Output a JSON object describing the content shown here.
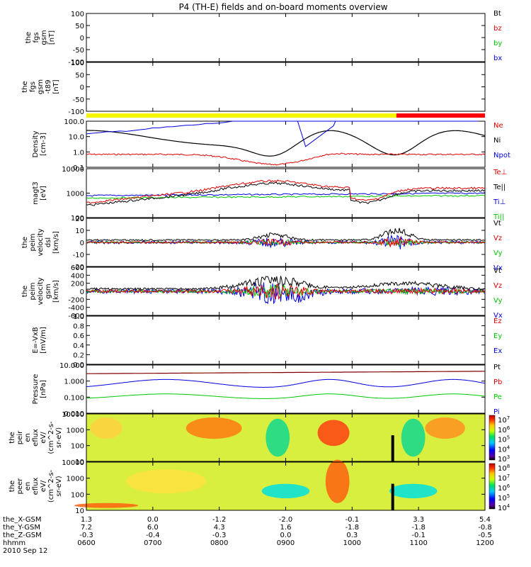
{
  "title": "P4 (TH-E) fields and on-board moments overview",
  "colors": {
    "black": "#000000",
    "red": "#e00000",
    "green": "#00c800",
    "blue": "#0000e0",
    "yellow": "#f5f500",
    "brightred": "#ff0000",
    "darkred": "#800000"
  },
  "chart_data": {
    "type": "line",
    "x_axis": {
      "ticks": [
        "0600",
        "0700",
        "0800",
        "0900",
        "1000",
        "1100",
        "1200"
      ],
      "date": "2010 Sep 12"
    },
    "panels": [
      {
        "id": "fgs_gse",
        "ylabel": [
          "the",
          "fgs",
          "gsm",
          "[nT]"
        ],
        "yticks": [
          "100",
          "50",
          "0",
          "-50",
          "-100"
        ],
        "legend": [
          {
            "label": "Bt",
            "color": "#000000"
          },
          {
            "label": "bz",
            "color": "#e00000"
          },
          {
            "label": "by",
            "color": "#00c800"
          },
          {
            "label": "bx",
            "color": "#0000e0"
          }
        ]
      },
      {
        "id": "fgs_t89",
        "ylabel": [
          "the",
          "fgs",
          "gsm",
          "-t89",
          "[nT]"
        ],
        "yticks": [
          "100",
          "50",
          "0",
          "-50",
          "-100"
        ],
        "legend": []
      },
      {
        "id": "density",
        "ylabel": [
          "Density",
          "[cm-3]"
        ],
        "yticks": [
          "100.0",
          "10.0",
          "1.0",
          "0.1"
        ],
        "legend": [
          {
            "label": "Ne",
            "color": "#e00000"
          },
          {
            "label": "Ni",
            "color": "#000000"
          },
          {
            "label": "Npot",
            "color": "#0000e0"
          }
        ]
      },
      {
        "id": "temperature",
        "ylabel": [
          "magt3",
          "[eV]"
        ],
        "yticks": [
          "10000",
          "1000",
          "100"
        ],
        "legend": [
          {
            "label": "Te⊥",
            "color": "#e00000"
          },
          {
            "label": "Te||",
            "color": "#000000"
          },
          {
            "label": "Ti⊥",
            "color": "#0000e0"
          },
          {
            "label": "Ti||",
            "color": "#00c800"
          }
        ]
      },
      {
        "id": "velocity_e",
        "ylabel": [
          "the",
          "peim",
          "velocity",
          "dsl",
          "[km/s]"
        ],
        "yticks": [
          "20",
          "10",
          "0",
          "-10",
          "-20"
        ],
        "legend": [
          {
            "label": "Vt",
            "color": "#000000"
          },
          {
            "label": "Vz",
            "color": "#e00000"
          },
          {
            "label": "Vy",
            "color": "#00c800"
          },
          {
            "label": "Vx",
            "color": "#0000e0"
          }
        ]
      },
      {
        "id": "velocity_i",
        "ylabel": [
          "the",
          "peim",
          "velocity",
          "gsm",
          "[km/s]"
        ],
        "yticks": [
          "600",
          "400",
          "200",
          "0",
          "-200",
          "-400",
          "-600"
        ],
        "legend": [
          {
            "label": "Vt",
            "color": "#000000"
          },
          {
            "label": "Vz",
            "color": "#e00000"
          },
          {
            "label": "Vy",
            "color": "#00c800"
          },
          {
            "label": "Vx",
            "color": "#0000e0"
          }
        ]
      },
      {
        "id": "efield",
        "ylabel": [
          "E=-VxB",
          "[mV/m]"
        ],
        "yticks": [
          "1.0",
          "0.8",
          "0.6",
          "0.4",
          "0.2",
          "0.0"
        ],
        "legend": [
          {
            "label": "Ez",
            "color": "#e00000"
          },
          {
            "label": "Ey",
            "color": "#00c800"
          },
          {
            "label": "Ex",
            "color": "#0000e0"
          }
        ]
      },
      {
        "id": "pressure",
        "ylabel": [
          "Pressure",
          "[nPa]"
        ],
        "yticks": [
          "10.000",
          "1.000",
          "0.100",
          "0.010"
        ],
        "legend": [
          {
            "label": "Pt",
            "color": "#000000"
          },
          {
            "label": "Pb",
            "color": "#e00000"
          },
          {
            "label": "Pe",
            "color": "#00c800"
          },
          {
            "label": "Pi",
            "color": "#0000e0"
          }
        ]
      },
      {
        "id": "ion_spec",
        "ylabel": [
          "the",
          "peir",
          "en",
          "eflux",
          "eV/",
          "(cm^2-s-",
          "sr-eV)"
        ],
        "yticks": [
          "10000",
          "1000",
          "100",
          "10"
        ],
        "colorbar": [
          "10^7",
          "10^6",
          "10^5",
          "10^4",
          "10^3"
        ]
      },
      {
        "id": "elec_spec",
        "ylabel": [
          "the",
          "peer",
          "en",
          "eflux",
          "eV/",
          "(cm^2-s-",
          "sr-eV)"
        ],
        "yticks": [
          "10000",
          "1000",
          "100",
          "10"
        ],
        "colorbar": [
          "10^8",
          "10^7",
          "10^6",
          "10^5",
          "10^4"
        ]
      }
    ],
    "orbit_rows": [
      {
        "label": "the_X-GSM",
        "values": [
          "1.3",
          "0.0",
          "-1.2",
          "-2.0",
          "-0.1",
          "3.3",
          "5.4"
        ]
      },
      {
        "label": "the_Y-GSM",
        "values": [
          "7.2",
          "6.0",
          "4.3",
          "1.6",
          "-1.8",
          "-1.8",
          "-0.8"
        ]
      },
      {
        "label": "the_Z-GSM",
        "values": [
          "-0.3",
          "-0.4",
          "-0.3",
          "0.0",
          "0.3",
          "-0.1",
          "-0.5"
        ]
      },
      {
        "label": "hhmm",
        "values": [
          "0600",
          "0700",
          "0800",
          "0900",
          "1000",
          "1100",
          "1200"
        ]
      }
    ],
    "mode_bar": [
      {
        "from": "0600",
        "to": "1040",
        "color": "#f5f500"
      },
      {
        "from": "1040",
        "to": "1200",
        "color": "#ff0000"
      }
    ]
  }
}
